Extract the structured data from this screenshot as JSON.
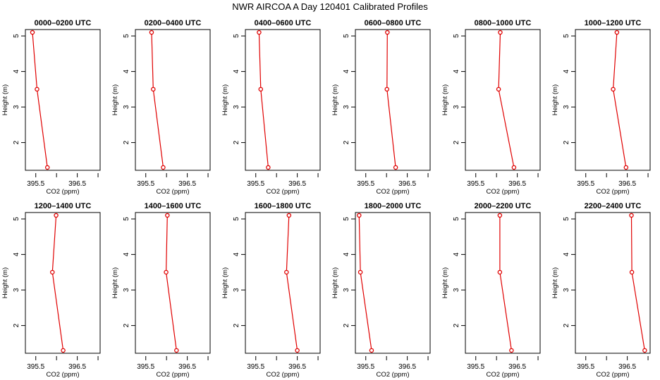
{
  "title": "NWR AIRCOA A  Day 120401  Calibrated Profiles",
  "chart_data": {
    "type": "line",
    "xlabel": "CO2 (ppm)",
    "ylabel": "Height (m)",
    "x_tick_labels": [
      "395.5",
      "396.5"
    ],
    "y_tick_labels": [
      "2",
      "3",
      "4",
      "5"
    ],
    "x_ticks": [
      395.5,
      396.0,
      396.5,
      397.0
    ],
    "y_ticks": [
      2,
      3,
      4,
      5
    ],
    "xlim": [
      395.25,
      397.05
    ],
    "ylim": [
      1.22,
      5.18
    ],
    "heights": [
      5.1,
      3.5,
      1.3
    ],
    "line_color": "#e00000",
    "panels": [
      {
        "title": "0000–0200 UTC",
        "co2": [
          395.42,
          395.53,
          395.78
        ]
      },
      {
        "title": "0200–0400 UTC",
        "co2": [
          395.64,
          395.68,
          395.92
        ]
      },
      {
        "title": "0400–0600 UTC",
        "co2": [
          395.58,
          395.62,
          395.8
        ]
      },
      {
        "title": "0600–0800 UTC",
        "co2": [
          396.02,
          396.01,
          396.22
        ]
      },
      {
        "title": "0800–1000 UTC",
        "co2": [
          396.09,
          396.05,
          396.42
        ]
      },
      {
        "title": "1000–1200 UTC",
        "co2": [
          396.25,
          396.16,
          396.47
        ]
      },
      {
        "title": "1200–1400 UTC",
        "co2": [
          395.99,
          395.9,
          396.16
        ]
      },
      {
        "title": "1400–1600 UTC",
        "co2": [
          396.02,
          395.99,
          396.24
        ]
      },
      {
        "title": "1600–1800 UTC",
        "co2": [
          396.3,
          396.24,
          396.5
        ]
      },
      {
        "title": "1800–2000 UTC",
        "co2": [
          395.34,
          395.37,
          395.64
        ]
      },
      {
        "title": "2000–2200 UTC",
        "co2": [
          396.08,
          396.08,
          396.36
        ]
      },
      {
        "title": "2200–2400 UTC",
        "co2": [
          396.6,
          396.61,
          396.92
        ]
      }
    ]
  }
}
